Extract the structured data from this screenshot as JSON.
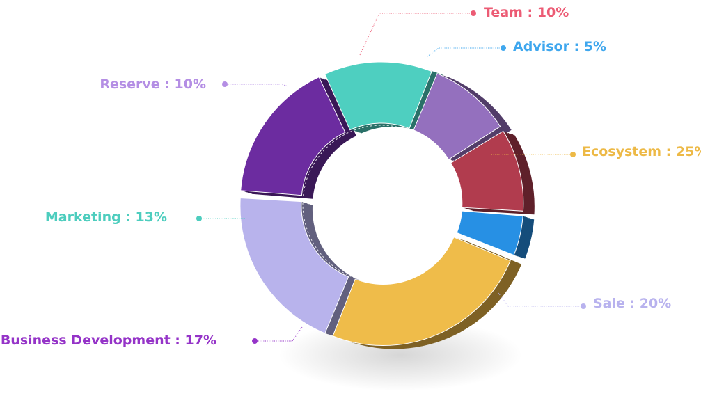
{
  "chart_data": {
    "type": "pie",
    "variant": "donut-3d",
    "title": "",
    "slices": [
      {
        "name": "Ecosystem",
        "value": 25,
        "label": "Ecosystem : 25%",
        "color": "#EFBC4A",
        "side_color": "#7E6124",
        "label_color": "#EDB946"
      },
      {
        "name": "Sale",
        "value": 20,
        "label": "Sale : 20%",
        "color": "#B8B3EC",
        "side_color": "#62607E",
        "label_color": "#B8B2EE"
      },
      {
        "name": "Business Development",
        "value": 17,
        "label": "Business Development : 17%",
        "color": "#6C2CA0",
        "side_color": "#3A1857",
        "label_color": "#9534C8"
      },
      {
        "name": "Marketing",
        "value": 13,
        "label": "Marketing : 13%",
        "color": "#4ECFC0",
        "side_color": "#2A7068",
        "label_color": "#4DCDBE"
      },
      {
        "name": "Reserve",
        "value": 10,
        "label": "Reserve : 10%",
        "color": "#9470BE",
        "side_color": "#523D69",
        "label_color": "#B48EE4"
      },
      {
        "name": "Team",
        "value": 10,
        "label": "Team : 10%",
        "color": "#B13C4E",
        "side_color": "#5F202A",
        "label_color": "#EC5B74"
      },
      {
        "name": "Advisor",
        "value": 5,
        "label": "Advisor : 5%",
        "color": "#2790E4",
        "side_color": "#154D7B",
        "label_color": "#3FA7EE"
      }
    ],
    "legend": "callout-labels"
  }
}
